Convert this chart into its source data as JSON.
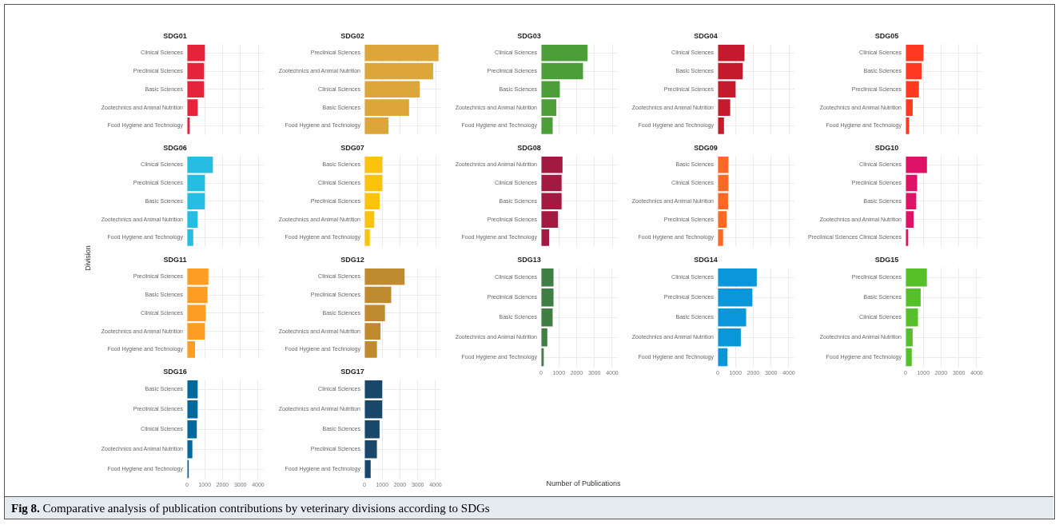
{
  "chart_data": [
    {
      "type": "bar",
      "orientation": "horizontal",
      "title": "SDG01",
      "categories": [
        "Clinical Sciences",
        "Preclinical Sciences",
        "Basic Sciences",
        "Zootechnics and Animal Nutrition",
        "Food Hygiene and Technology"
      ],
      "values": [
        1000,
        950,
        950,
        600,
        150
      ],
      "color": "#e5243b",
      "xlim": [
        0,
        4300
      ],
      "xticks": [
        0,
        1000,
        2000,
        3000,
        4000
      ],
      "grid": true,
      "tick_labels": "y"
    },
    {
      "type": "bar",
      "orientation": "horizontal",
      "title": "SDG02",
      "categories": [
        "Preclinical Sciences",
        "Zootechnics and Animal Nutrition",
        "Clinical Sciences",
        "Basic Sciences",
        "Food Hygiene and Technology"
      ],
      "values": [
        4150,
        3850,
        3100,
        2500,
        1350
      ],
      "color": "#dda63a",
      "xlim": [
        0,
        4300
      ],
      "xticks": [
        0,
        1000,
        2000,
        3000,
        4000
      ],
      "grid": true,
      "tick_labels": "y"
    },
    {
      "type": "bar",
      "orientation": "horizontal",
      "title": "SDG03",
      "categories": [
        "Clinical Sciences",
        "Preclinical Sciences",
        "Basic Sciences",
        "Zootechnics and Animal Nutrition",
        "Food Hygiene and Technology"
      ],
      "values": [
        2600,
        2350,
        1050,
        850,
        650
      ],
      "color": "#4c9f38",
      "xlim": [
        0,
        4300
      ],
      "xticks": [
        0,
        1000,
        2000,
        3000,
        4000
      ],
      "grid": true,
      "tick_labels": "y"
    },
    {
      "type": "bar",
      "orientation": "horizontal",
      "title": "SDG04",
      "categories": [
        "Clinical Sciences",
        "Basic Sciences",
        "Preclinical Sciences",
        "Zootechnics and Animal Nutrition",
        "Food Hygiene and Technology"
      ],
      "values": [
        1500,
        1400,
        1000,
        700,
        350
      ],
      "color": "#c5192d",
      "xlim": [
        0,
        4300
      ],
      "xticks": [
        0,
        1000,
        2000,
        3000,
        4000
      ],
      "grid": true,
      "tick_labels": "y"
    },
    {
      "type": "bar",
      "orientation": "horizontal",
      "title": "SDG05",
      "categories": [
        "Clinical Sciences",
        "Basic Sciences",
        "Preclinical Sciences",
        "Zootechnics and Animal Nutrition",
        "Food Hygiene and Technology"
      ],
      "values": [
        1000,
        900,
        750,
        400,
        200
      ],
      "color": "#ff3a21",
      "xlim": [
        0,
        4300
      ],
      "xticks": [
        0,
        1000,
        2000,
        3000,
        4000
      ],
      "grid": true,
      "tick_labels": "y"
    },
    {
      "type": "bar",
      "orientation": "horizontal",
      "title": "SDG06",
      "ylabel": "Division",
      "categories": [
        "Clinical Sciences",
        "Preclinical Sciences",
        "Basic Sciences",
        "Zootechnics and Animal Nutrition",
        "Food Hygiene and Technology"
      ],
      "values": [
        1450,
        1000,
        1000,
        600,
        350
      ],
      "color": "#26bde2",
      "xlim": [
        0,
        4300
      ],
      "xticks": [
        0,
        1000,
        2000,
        3000,
        4000
      ],
      "grid": true,
      "tick_labels": "y"
    },
    {
      "type": "bar",
      "orientation": "horizontal",
      "title": "SDG07",
      "categories": [
        "Basic Sciences",
        "Clinical Sciences",
        "Preclinical Sciences",
        "Zootechnics and Animal Nutrition",
        "Food Hygiene and Technology"
      ],
      "values": [
        1000,
        1000,
        850,
        550,
        300
      ],
      "color": "#fcc30b",
      "xlim": [
        0,
        4300
      ],
      "xticks": [
        0,
        1000,
        2000,
        3000,
        4000
      ],
      "grid": true,
      "tick_labels": "y"
    },
    {
      "type": "bar",
      "orientation": "horizontal",
      "title": "SDG08",
      "categories": [
        "Zootechnics and Animal Nutrition",
        "Clinical Sciences",
        "Basic Sciences",
        "Preclinical Sciences",
        "Food Hygiene and Technology"
      ],
      "values": [
        1200,
        1150,
        1150,
        950,
        450
      ],
      "color": "#a21942",
      "xlim": [
        0,
        4300
      ],
      "xticks": [
        0,
        1000,
        2000,
        3000,
        4000
      ],
      "grid": true,
      "tick_labels": "y"
    },
    {
      "type": "bar",
      "orientation": "horizontal",
      "title": "SDG09",
      "categories": [
        "Basic Sciences",
        "Clinical Sciences",
        "Zootechnics and Animal Nutrition",
        "Preclinical Sciences",
        "Food Hygiene and Technology"
      ],
      "values": [
        600,
        600,
        580,
        500,
        300
      ],
      "color": "#fd6925",
      "xlim": [
        0,
        4300
      ],
      "xticks": [
        0,
        1000,
        2000,
        3000,
        4000
      ],
      "grid": true,
      "tick_labels": "y"
    },
    {
      "type": "bar",
      "orientation": "horizontal",
      "title": "SDG10",
      "categories": [
        "Clinical Sciences",
        "Preclinical Sciences",
        "Basic Sciences",
        "Zootechnics and Animal Nutrition",
        "Preclinical Sciences Clinical Sciences"
      ],
      "values": [
        1200,
        650,
        600,
        450,
        150
      ],
      "color": "#dd1367",
      "xlim": [
        0,
        4300
      ],
      "xticks": [
        0,
        1000,
        2000,
        3000,
        4000
      ],
      "grid": true,
      "tick_labels": "y"
    },
    {
      "type": "bar",
      "orientation": "horizontal",
      "title": "SDG11",
      "categories": [
        "Preclinical Sciences",
        "Basic Sciences",
        "Clinical Sciences",
        "Zootechnics and Animal Nutrition",
        "Food Hygiene and Technology"
      ],
      "values": [
        1200,
        1150,
        1050,
        1000,
        450
      ],
      "color": "#fd9d24",
      "xlim": [
        0,
        4300
      ],
      "xticks": [
        0,
        1000,
        2000,
        3000,
        4000
      ],
      "grid": true,
      "tick_labels": "y"
    },
    {
      "type": "bar",
      "orientation": "horizontal",
      "title": "SDG12",
      "categories": [
        "Clinical Sciences",
        "Preclinical Sciences",
        "Basic Sciences",
        "Zootechnics and Animal Nutrition",
        "Food Hygiene and Technology"
      ],
      "values": [
        2250,
        1500,
        1150,
        900,
        700
      ],
      "color": "#bf8b2e",
      "xlim": [
        0,
        4300
      ],
      "xticks": [
        0,
        1000,
        2000,
        3000,
        4000
      ],
      "grid": true,
      "tick_labels": "y"
    },
    {
      "type": "bar",
      "orientation": "horizontal",
      "title": "SDG13",
      "xlabel": "Number of Publications",
      "categories": [
        "Clinical Sciences",
        "Preclinical Sciences",
        "Basic Sciences",
        "Zootechnics and Animal Nutrition",
        "Food Hygiene and Technology"
      ],
      "values": [
        700,
        700,
        650,
        350,
        150
      ],
      "color": "#3f7e44",
      "xlim": [
        0,
        4300
      ],
      "xticks": [
        0,
        1000,
        2000,
        3000,
        4000
      ],
      "grid": true
    },
    {
      "type": "bar",
      "orientation": "horizontal",
      "title": "SDG14",
      "categories": [
        "Clinical Sciences",
        "Preclinical Sciences",
        "Basic Sciences",
        "Zootechnics and Animal Nutrition",
        "Food Hygiene and Technology"
      ],
      "values": [
        2200,
        1950,
        1600,
        1300,
        550
      ],
      "color": "#0a97d9",
      "xlim": [
        0,
        4300
      ],
      "xticks": [
        0,
        1000,
        2000,
        3000,
        4000
      ],
      "grid": true
    },
    {
      "type": "bar",
      "orientation": "horizontal",
      "title": "SDG15",
      "categories": [
        "Preclinical Sciences",
        "Basic Sciences",
        "Clinical Sciences",
        "Zootechnics and Animal Nutrition",
        "Food Hygiene and Technology"
      ],
      "values": [
        1200,
        850,
        700,
        400,
        350
      ],
      "color": "#56c02b",
      "xlim": [
        0,
        4300
      ],
      "xticks": [
        0,
        1000,
        2000,
        3000,
        4000
      ],
      "grid": true
    },
    {
      "type": "bar",
      "orientation": "horizontal",
      "title": "SDG16",
      "categories": [
        "Basic Sciences",
        "Preclinical Sciences",
        "Clinical Sciences",
        "Zootechnics and Animal Nutrition",
        "Food Hygiene and Technology"
      ],
      "values": [
        600,
        600,
        550,
        300,
        100
      ],
      "color": "#00689d",
      "xlim": [
        0,
        4300
      ],
      "xticks": [
        0,
        1000,
        2000,
        3000,
        4000
      ],
      "grid": true
    },
    {
      "type": "bar",
      "orientation": "horizontal",
      "title": "SDG17",
      "annotations": [
        "Fig 8. Comparative analysis of publication contributions by veterinary divisions according to SDGs"
      ],
      "categories": [
        "Clinical Sciences",
        "Zootechnics and Animal Nutrition",
        "Basic Sciences",
        "Preclinical Sciences",
        "Food Hygiene and Technology"
      ],
      "values": [
        1000,
        1000,
        850,
        700,
        350
      ],
      "color": "#19486a",
      "xlim": [
        0,
        4300
      ],
      "xticks": [
        0,
        1000,
        2000,
        3000,
        4000
      ],
      "grid": true
    }
  ]
}
